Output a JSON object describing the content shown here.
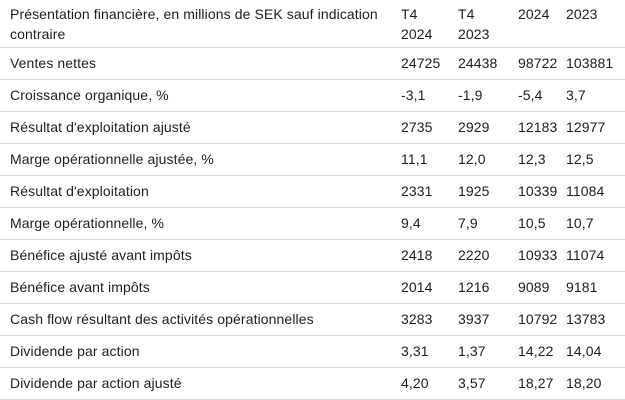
{
  "chart_data": {
    "type": "table",
    "title": "Présentation financière, en millions de SEK sauf indication contraire",
    "header": {
      "label": "Présentation financière, en millions de SEK sauf indication contraire",
      "columns": [
        {
          "label": "T4 2024",
          "line1": "T4",
          "line2": "2024"
        },
        {
          "label": "T4 2023",
          "line1": "T4",
          "line2": "2023"
        },
        {
          "label": "2024",
          "line1": "2024",
          "line2": ""
        },
        {
          "label": "2023",
          "line1": "2023",
          "line2": ""
        }
      ]
    },
    "rows": [
      {
        "label": "Ventes nettes",
        "values": [
          "24725",
          "24438",
          "98722",
          "103881"
        ]
      },
      {
        "label": "Croissance organique, %",
        "values": [
          "-3,1",
          "-1,9",
          "-5,4",
          "3,7"
        ]
      },
      {
        "label": "Résultat d'exploitation ajusté",
        "values": [
          "2735",
          "2929",
          "12183",
          "12977"
        ]
      },
      {
        "label": "Marge opérationnelle ajustée, %",
        "values": [
          "11,1",
          "12,0",
          "12,3",
          "12,5"
        ]
      },
      {
        "label": "Résultat d'exploitation",
        "values": [
          "2331",
          "1925",
          "10339",
          "11084"
        ]
      },
      {
        "label": "Marge opérationnelle, %",
        "values": [
          "9,4",
          "7,9",
          "10,5",
          "10,7"
        ]
      },
      {
        "label": "Bénéfice ajusté avant impôts",
        "values": [
          "2418",
          "2220",
          "10933",
          "11074"
        ]
      },
      {
        "label": "Bénéfice avant impôts",
        "values": [
          "2014",
          "1216",
          "9089",
          "9181"
        ]
      },
      {
        "label": "Cash flow résultant des activités opérationnelles",
        "values": [
          "3283",
          "3937",
          "10792",
          "13783"
        ]
      },
      {
        "label": "Dividende par action",
        "values": [
          "3,31",
          "1,37",
          "14,22",
          "14,04"
        ]
      },
      {
        "label": "Dividende par action ajusté",
        "values": [
          "4,20",
          "3,57",
          "18,27",
          "18,20"
        ]
      }
    ],
    "colors": {
      "text": "#1d1d1d",
      "row_border": "#dcdcdc",
      "background": "#ffffff"
    }
  }
}
